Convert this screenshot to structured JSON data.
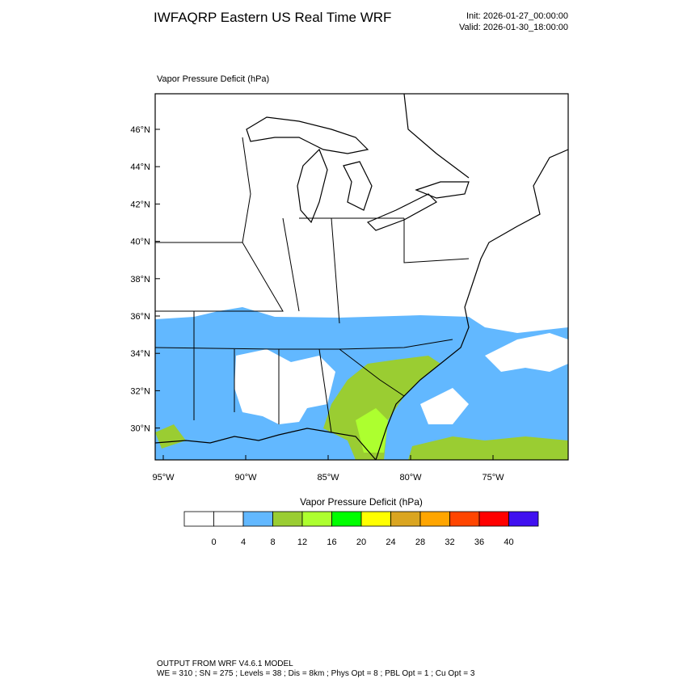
{
  "header": {
    "title": "IWFAQRP Eastern US Real Time WRF",
    "init": "Init: 2026-01-27_00:00:00",
    "valid": "Valid: 2026-01-30_18:00:00"
  },
  "map": {
    "title": "Vapor Pressure Deficit   (hPa)",
    "lat_labels": [
      "46°N",
      "44°N",
      "42°N",
      "40°N",
      "38°N",
      "36°N",
      "34°N",
      "32°N",
      "30°N"
    ],
    "lon_labels": [
      "95°W",
      "90°W",
      "85°W",
      "80°W",
      "75°W"
    ]
  },
  "colorbar": {
    "title": "Vapor Pressure Deficit  (hPa)",
    "colors": [
      "#ffffff",
      "#ffffff",
      "#62b8ff",
      "#9acd32",
      "#adff2f",
      "#00ff00",
      "#ffff00",
      "#daa520",
      "#ffa500",
      "#ff4500",
      "#ff0000",
      "#4010f0"
    ],
    "ticks": [
      0,
      4,
      8,
      12,
      16,
      20,
      24,
      28,
      32,
      36,
      40
    ]
  },
  "footer": {
    "line1": "OUTPUT FROM WRF V4.6.1 MODEL",
    "line2": "WE = 310 ; SN = 275 ; Levels = 38 ; Dis = 8km ; Phys Opt = 8 ; PBL Opt = 1 ; Cu Opt = 3"
  }
}
